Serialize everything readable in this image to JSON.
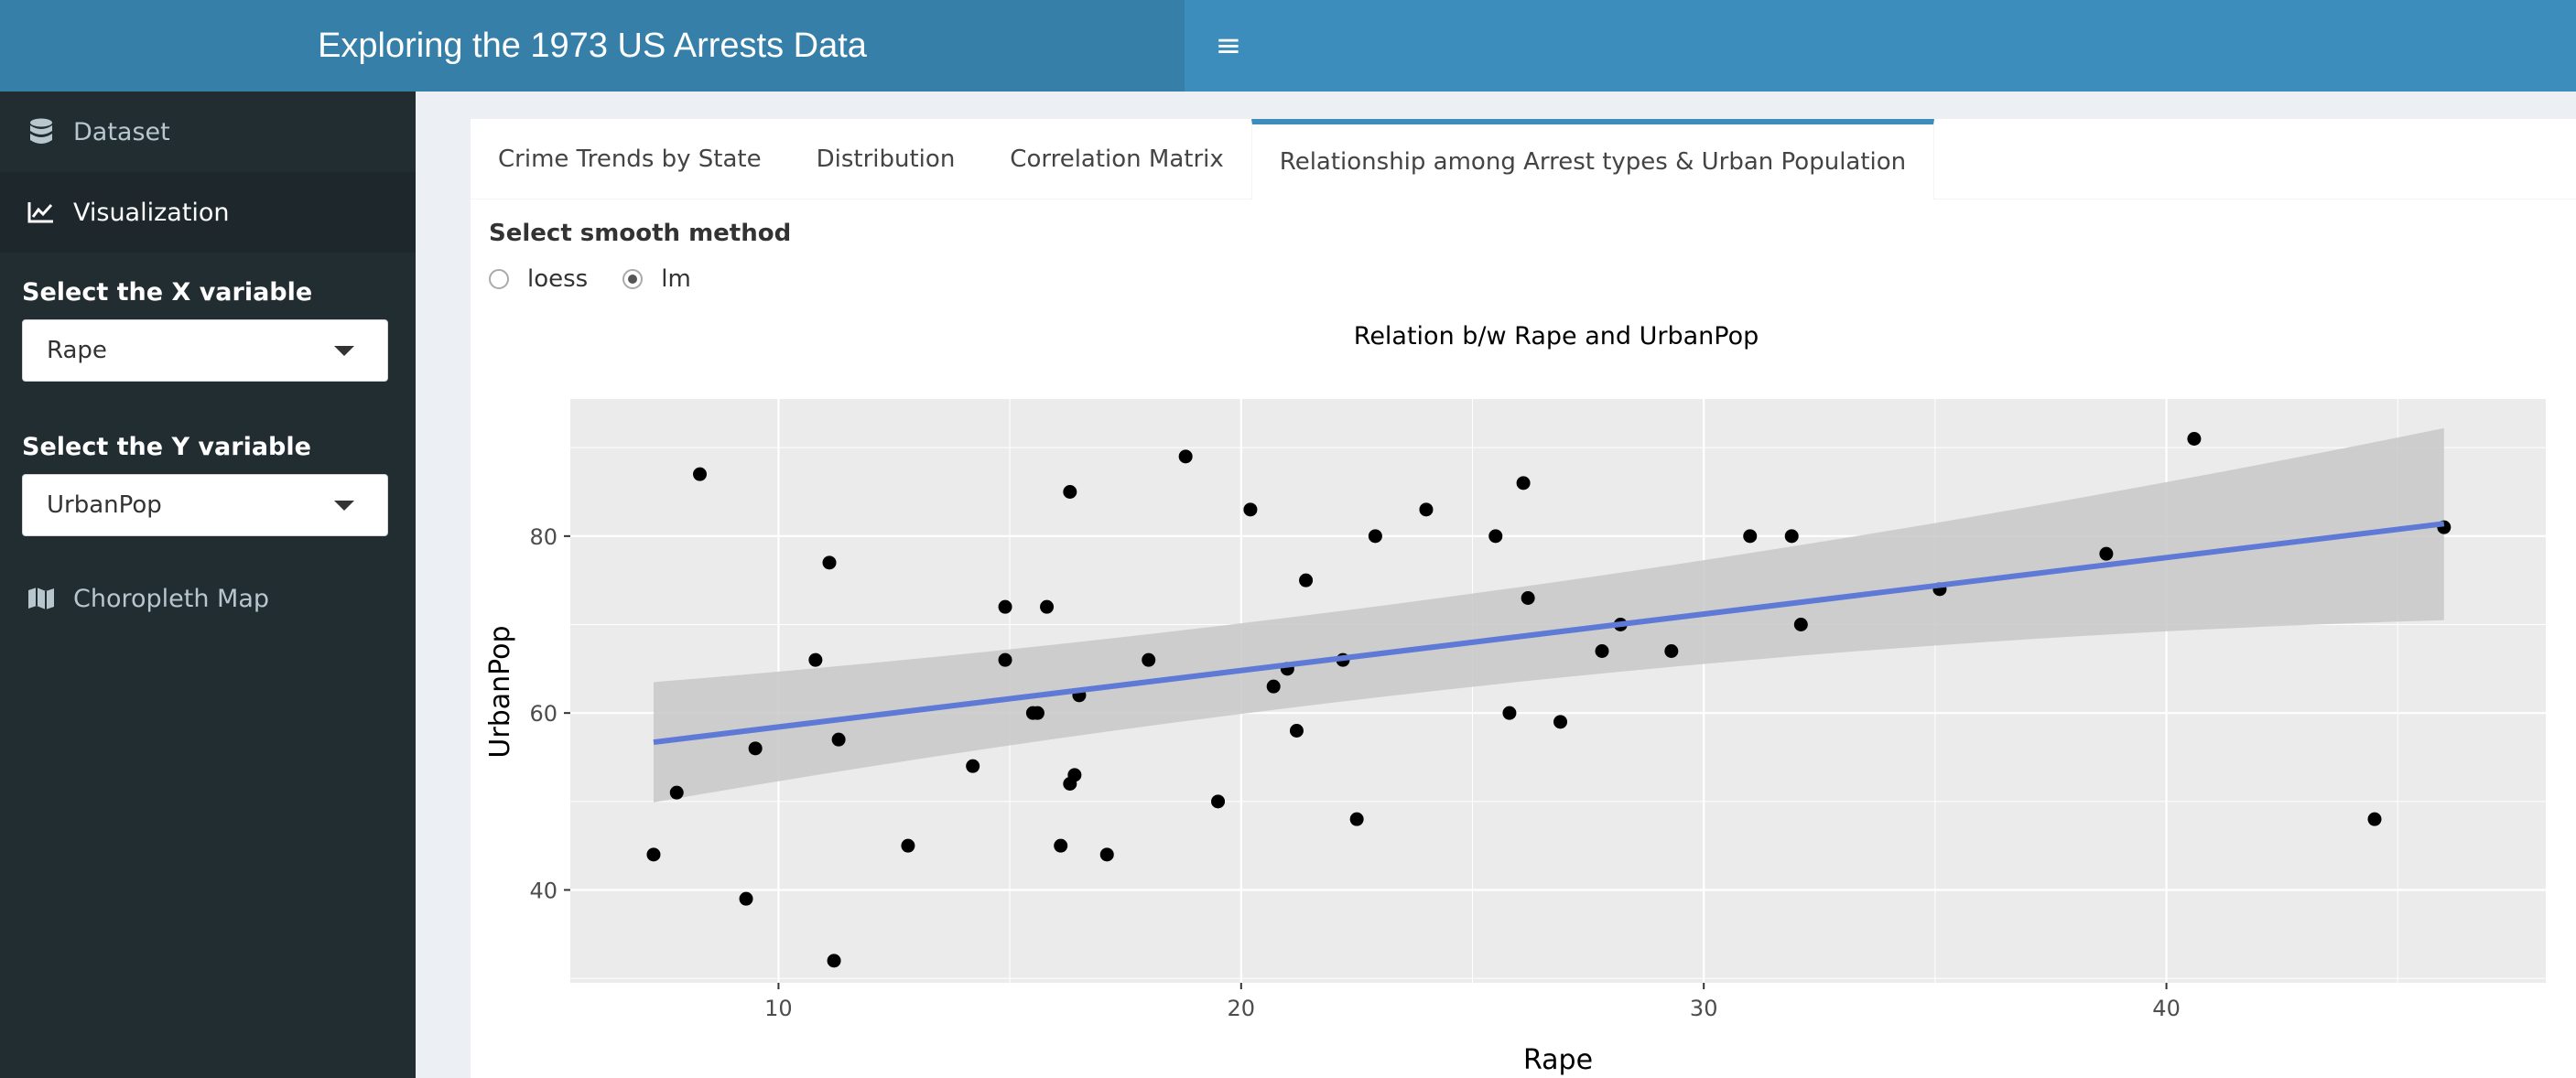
{
  "header": {
    "title": "Exploring the 1973 US Arrests Data",
    "menu_icon": "hamburger-icon"
  },
  "sidebar": {
    "items": [
      {
        "label": "Dataset",
        "icon": "database-icon"
      },
      {
        "label": "Visualization",
        "icon": "line-chart-icon"
      },
      {
        "label": "Choropleth Map",
        "icon": "map-icon"
      }
    ],
    "x_label": "Select the X variable",
    "x_value": "Rape",
    "y_label": "Select the Y variable",
    "y_value": "UrbanPop"
  },
  "tabs": [
    {
      "label": "Crime Trends by State"
    },
    {
      "label": "Distribution"
    },
    {
      "label": "Correlation Matrix"
    },
    {
      "label": "Relationship among Arrest types & Urban Population"
    }
  ],
  "smooth": {
    "label": "Select smooth method",
    "options": [
      {
        "label": "loess",
        "checked": false
      },
      {
        "label": "lm",
        "checked": true
      }
    ]
  },
  "chart_data": {
    "type": "scatter",
    "title": "Relation b/w Rape and UrbanPop",
    "xlabel": "Rape",
    "ylabel": "UrbanPop",
    "xlim": [
      5.5,
      48.2
    ],
    "ylim": [
      29.5,
      95.5
    ],
    "x_ticks": [
      10,
      20,
      30,
      40
    ],
    "y_ticks": [
      40,
      60,
      80
    ],
    "grid": true,
    "colors": {
      "panel": "#ebebeb",
      "point": "#000000",
      "fit": "#5f79d6",
      "band": "#c8c8c8",
      "grid": "#ffffff"
    },
    "points": [
      [
        21.2,
        58
      ],
      [
        44.5,
        48
      ],
      [
        31.0,
        80
      ],
      [
        19.5,
        50
      ],
      [
        40.6,
        91
      ],
      [
        38.7,
        78
      ],
      [
        11.1,
        77
      ],
      [
        15.8,
        72
      ],
      [
        31.9,
        80
      ],
      [
        25.8,
        60
      ],
      [
        20.2,
        83
      ],
      [
        14.2,
        54
      ],
      [
        24.0,
        83
      ],
      [
        21.0,
        65
      ],
      [
        11.3,
        57
      ],
      [
        18.0,
        66
      ],
      [
        16.3,
        52
      ],
      [
        22.2,
        66
      ],
      [
        7.8,
        51
      ],
      [
        27.8,
        67
      ],
      [
        16.3,
        85
      ],
      [
        35.1,
        74
      ],
      [
        14.9,
        66
      ],
      [
        17.1,
        44
      ],
      [
        28.2,
        70
      ],
      [
        16.4,
        53
      ],
      [
        16.5,
        62
      ],
      [
        46.0,
        81
      ],
      [
        9.5,
        56
      ],
      [
        18.8,
        89
      ],
      [
        32.1,
        70
      ],
      [
        26.1,
        86
      ],
      [
        16.1,
        45
      ],
      [
        7.3,
        44
      ],
      [
        21.4,
        75
      ],
      [
        15.5,
        60
      ],
      [
        29.3,
        67
      ],
      [
        14.9,
        72
      ],
      [
        8.3,
        87
      ],
      [
        22.5,
        48
      ],
      [
        12.8,
        45
      ],
      [
        26.9,
        59
      ],
      [
        25.5,
        80
      ],
      [
        22.9,
        80
      ],
      [
        11.2,
        32
      ],
      [
        20.7,
        63
      ],
      [
        26.2,
        73
      ],
      [
        9.3,
        39
      ],
      [
        10.8,
        66
      ],
      [
        15.6,
        60
      ]
    ],
    "fit": {
      "method": "lm",
      "x": [
        7.3,
        46.0
      ],
      "y": [
        56.7,
        81.4
      ],
      "band_lower": [
        49.9,
        70.5
      ],
      "band_upper": [
        63.5,
        92.2
      ]
    }
  }
}
